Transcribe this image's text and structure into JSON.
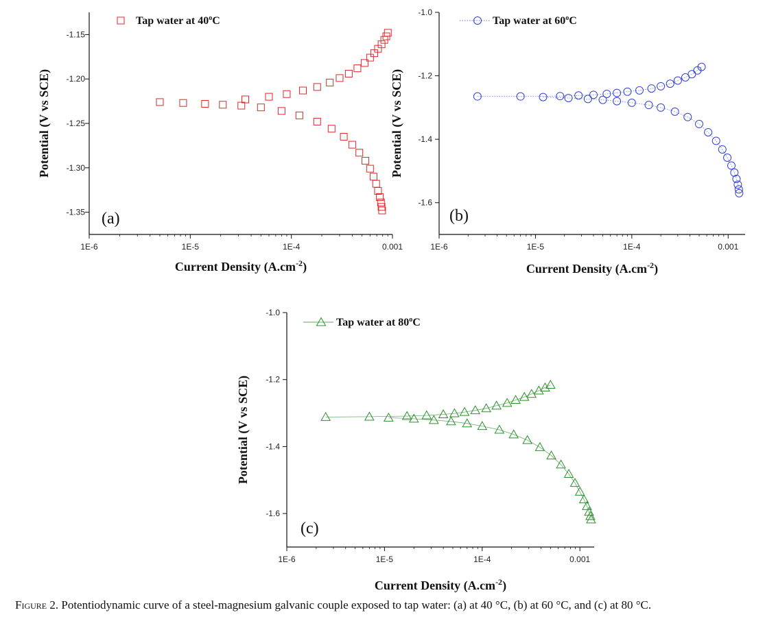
{
  "caption": {
    "label": "Figure 2",
    "text": ". Potentiodynamic curve of a steel-magnesium galvanic couple exposed to tap water: (a) at 40 °C, (b) at 60 °C, and (c) at 80 °C."
  },
  "chart_data": [
    {
      "type": "scatter",
      "panel_label": "(a)",
      "xlabel": "Current Density (A.cm⁻²)",
      "ylabel": "Potential (V vs SCE)",
      "xscale": "log",
      "xlim": [
        1e-06,
        0.001
      ],
      "ylim": [
        -1.375,
        -1.125
      ],
      "xticks": [
        "1E-6",
        "1E-5",
        "1E-4",
        "0.001"
      ],
      "yticks": [
        "-1.15",
        "-1.20",
        "-1.25",
        "-1.30",
        "-1.35"
      ],
      "legend_position": "top-left",
      "color": "#e0262a",
      "marker": "square",
      "series": [
        {
          "name": "Tap water at 40°C",
          "anodic": {
            "x": [
              3.5e-05,
              6e-05,
              9e-05,
              0.00013,
              0.00018,
              0.00024,
              0.0003,
              0.00037,
              0.00045,
              0.00053,
              0.0006,
              0.00066,
              0.00072,
              0.00078,
              0.00083,
              0.00087,
              0.0009
            ],
            "y": [
              -1.223,
              -1.22,
              -1.217,
              -1.213,
              -1.209,
              -1.204,
              -1.199,
              -1.194,
              -1.188,
              -1.182,
              -1.176,
              -1.171,
              -1.166,
              -1.161,
              -1.156,
              -1.152,
              -1.148
            ]
          },
          "cathodic": {
            "x": [
              5e-06,
              8.5e-06,
              1.4e-05,
              2.1e-05,
              3.2e-05,
              5e-05,
              8e-05,
              0.00012,
              0.00018,
              0.00025,
              0.00033,
              0.0004,
              0.00047,
              0.00054,
              0.0006,
              0.00065,
              0.00069,
              0.00072,
              0.00075,
              0.00077,
              0.00078,
              0.00079
            ],
            "y": [
              -1.226,
              -1.227,
              -1.228,
              -1.229,
              -1.23,
              -1.232,
              -1.236,
              -1.241,
              -1.248,
              -1.256,
              -1.265,
              -1.274,
              -1.283,
              -1.292,
              -1.301,
              -1.31,
              -1.318,
              -1.326,
              -1.333,
              -1.339,
              -1.344,
              -1.348
            ]
          }
        }
      ]
    },
    {
      "type": "scatter",
      "panel_label": "(b)",
      "xlabel": "Current Density (A.cm⁻²)",
      "ylabel": "Potential (V vs SCE)",
      "xscale": "log",
      "xlim": [
        1e-06,
        0.0015
      ],
      "ylim": [
        -1.7,
        -1.0
      ],
      "xticks": [
        "1E-6",
        "1E-5",
        "1E-4",
        "0.001"
      ],
      "yticks": [
        "-1.0",
        "-1.2",
        "-1.4",
        "-1.6"
      ],
      "legend_position": "top-left",
      "color": "#2f3fd8",
      "marker": "circle",
      "series": [
        {
          "name": "Tap water at 60°C",
          "anodic": {
            "x": [
              2.5e-06,
              7e-06,
              1.8e-05,
              2.8e-05,
              4e-05,
              5.5e-05,
              7e-05,
              9e-05,
              0.00012,
              0.00016,
              0.0002,
              0.00025,
              0.0003,
              0.00036,
              0.00042,
              0.00048,
              0.00053
            ],
            "y": [
              -1.265,
              -1.265,
              -1.264,
              -1.262,
              -1.26,
              -1.257,
              -1.254,
              -1.25,
              -1.246,
              -1.24,
              -1.233,
              -1.225,
              -1.215,
              -1.205,
              -1.195,
              -1.183,
              -1.172
            ]
          },
          "cathodic": {
            "x": [
              1.2e-05,
              2.2e-05,
              3.5e-05,
              5e-05,
              7e-05,
              0.0001,
              0.00015,
              0.0002,
              0.00028,
              0.00038,
              0.0005,
              0.00062,
              0.00075,
              0.00087,
              0.00098,
              0.00108,
              0.00116,
              0.00122,
              0.00126,
              0.00129,
              0.0013
            ],
            "y": [
              -1.267,
              -1.27,
              -1.273,
              -1.276,
              -1.28,
              -1.285,
              -1.292,
              -1.3,
              -1.313,
              -1.33,
              -1.352,
              -1.378,
              -1.405,
              -1.432,
              -1.458,
              -1.483,
              -1.505,
              -1.525,
              -1.543,
              -1.558,
              -1.57
            ]
          }
        }
      ]
    },
    {
      "type": "scatter",
      "panel_label": "(c)",
      "xlabel": "Current Density (A.cm⁻²)",
      "ylabel": "Potential (V vs SCE)",
      "xscale": "log",
      "xlim": [
        1e-06,
        0.0014
      ],
      "ylim": [
        -1.7,
        -1.0
      ],
      "xticks": [
        "1E-6",
        "1E-5",
        "1E-4",
        "0.001"
      ],
      "yticks": [
        "-1.0",
        "-1.2",
        "-1.4",
        "-1.6"
      ],
      "legend_position": "top-left",
      "color": "#2a8f2a",
      "marker": "triangle",
      "series": [
        {
          "name": "Tap water at 80°C",
          "anodic": {
            "x": [
              2.5e-06,
              7e-06,
              1.7e-05,
              2.7e-05,
              4e-05,
              5.2e-05,
              6.6e-05,
              8.5e-05,
              0.00011,
              0.00014,
              0.00018,
              0.00022,
              0.00027,
              0.00032,
              0.00038,
              0.00044,
              0.0005
            ],
            "y": [
              -1.312,
              -1.311,
              -1.309,
              -1.307,
              -1.304,
              -1.301,
              -1.297,
              -1.292,
              -1.286,
              -1.278,
              -1.27,
              -1.261,
              -1.252,
              -1.243,
              -1.233,
              -1.224,
              -1.216
            ]
          },
          "cathodic": {
            "x": [
              1.1e-05,
              2e-05,
              3.2e-05,
              4.8e-05,
              7e-05,
              0.0001,
              0.00015,
              0.00021,
              0.00029,
              0.00039,
              0.00051,
              0.00064,
              0.00077,
              0.00089,
              0.001,
              0.0011,
              0.00118,
              0.00124,
              0.00128,
              0.0013
            ],
            "y": [
              -1.314,
              -1.317,
              -1.321,
              -1.325,
              -1.331,
              -1.339,
              -1.35,
              -1.364,
              -1.381,
              -1.402,
              -1.427,
              -1.454,
              -1.482,
              -1.509,
              -1.535,
              -1.558,
              -1.578,
              -1.595,
              -1.608,
              -1.618
            ]
          }
        }
      ]
    }
  ]
}
